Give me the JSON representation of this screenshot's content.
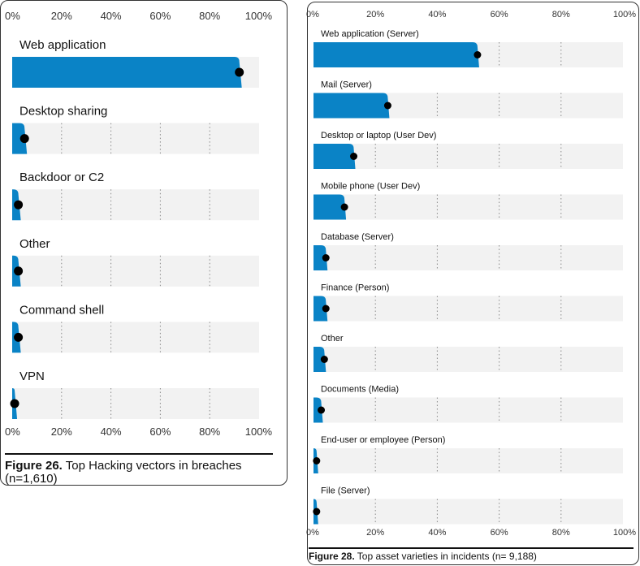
{
  "chart_data": [
    {
      "type": "bar",
      "orientation": "horizontal",
      "categories": [
        "Web application",
        "Desktop sharing",
        "Backdoor or C2",
        "Other",
        "Command shell",
        "VPN"
      ],
      "values": [
        92,
        5,
        2.5,
        2.5,
        2.5,
        1
      ],
      "xlim": [
        0,
        100
      ],
      "tick_labels": [
        "0%",
        "20%",
        "40%",
        "60%",
        "80%",
        "100%"
      ],
      "caption_bold": "Figure 26.",
      "caption_text": " Top Hacking vectors in breaches (n=1,610)",
      "grid": true
    },
    {
      "type": "bar",
      "orientation": "horizontal",
      "categories": [
        "Web application (Server)",
        "Mail (Server)",
        "Desktop or laptop (User Dev)",
        "Mobile phone (User Dev)",
        "Database (Server)",
        "Finance (Person)",
        "Other",
        "Documents (Media)",
        "End-user or employee (Person)",
        "File (Server)"
      ],
      "values": [
        53,
        24,
        13,
        10,
        4,
        4,
        3.5,
        2.5,
        1,
        1
      ],
      "xlim": [
        0,
        100
      ],
      "tick_labels": [
        "0%",
        "20%",
        "40%",
        "60%",
        "80%",
        "100%"
      ],
      "caption_bold": "Figure 28.",
      "caption_text": " Top asset varieties in incidents (n= 9,188)",
      "grid": true
    }
  ],
  "colors": {
    "bar": "#0a83c6",
    "track": "#f2f2f2",
    "dot": "#000000",
    "grid": "#8a8a8a"
  }
}
